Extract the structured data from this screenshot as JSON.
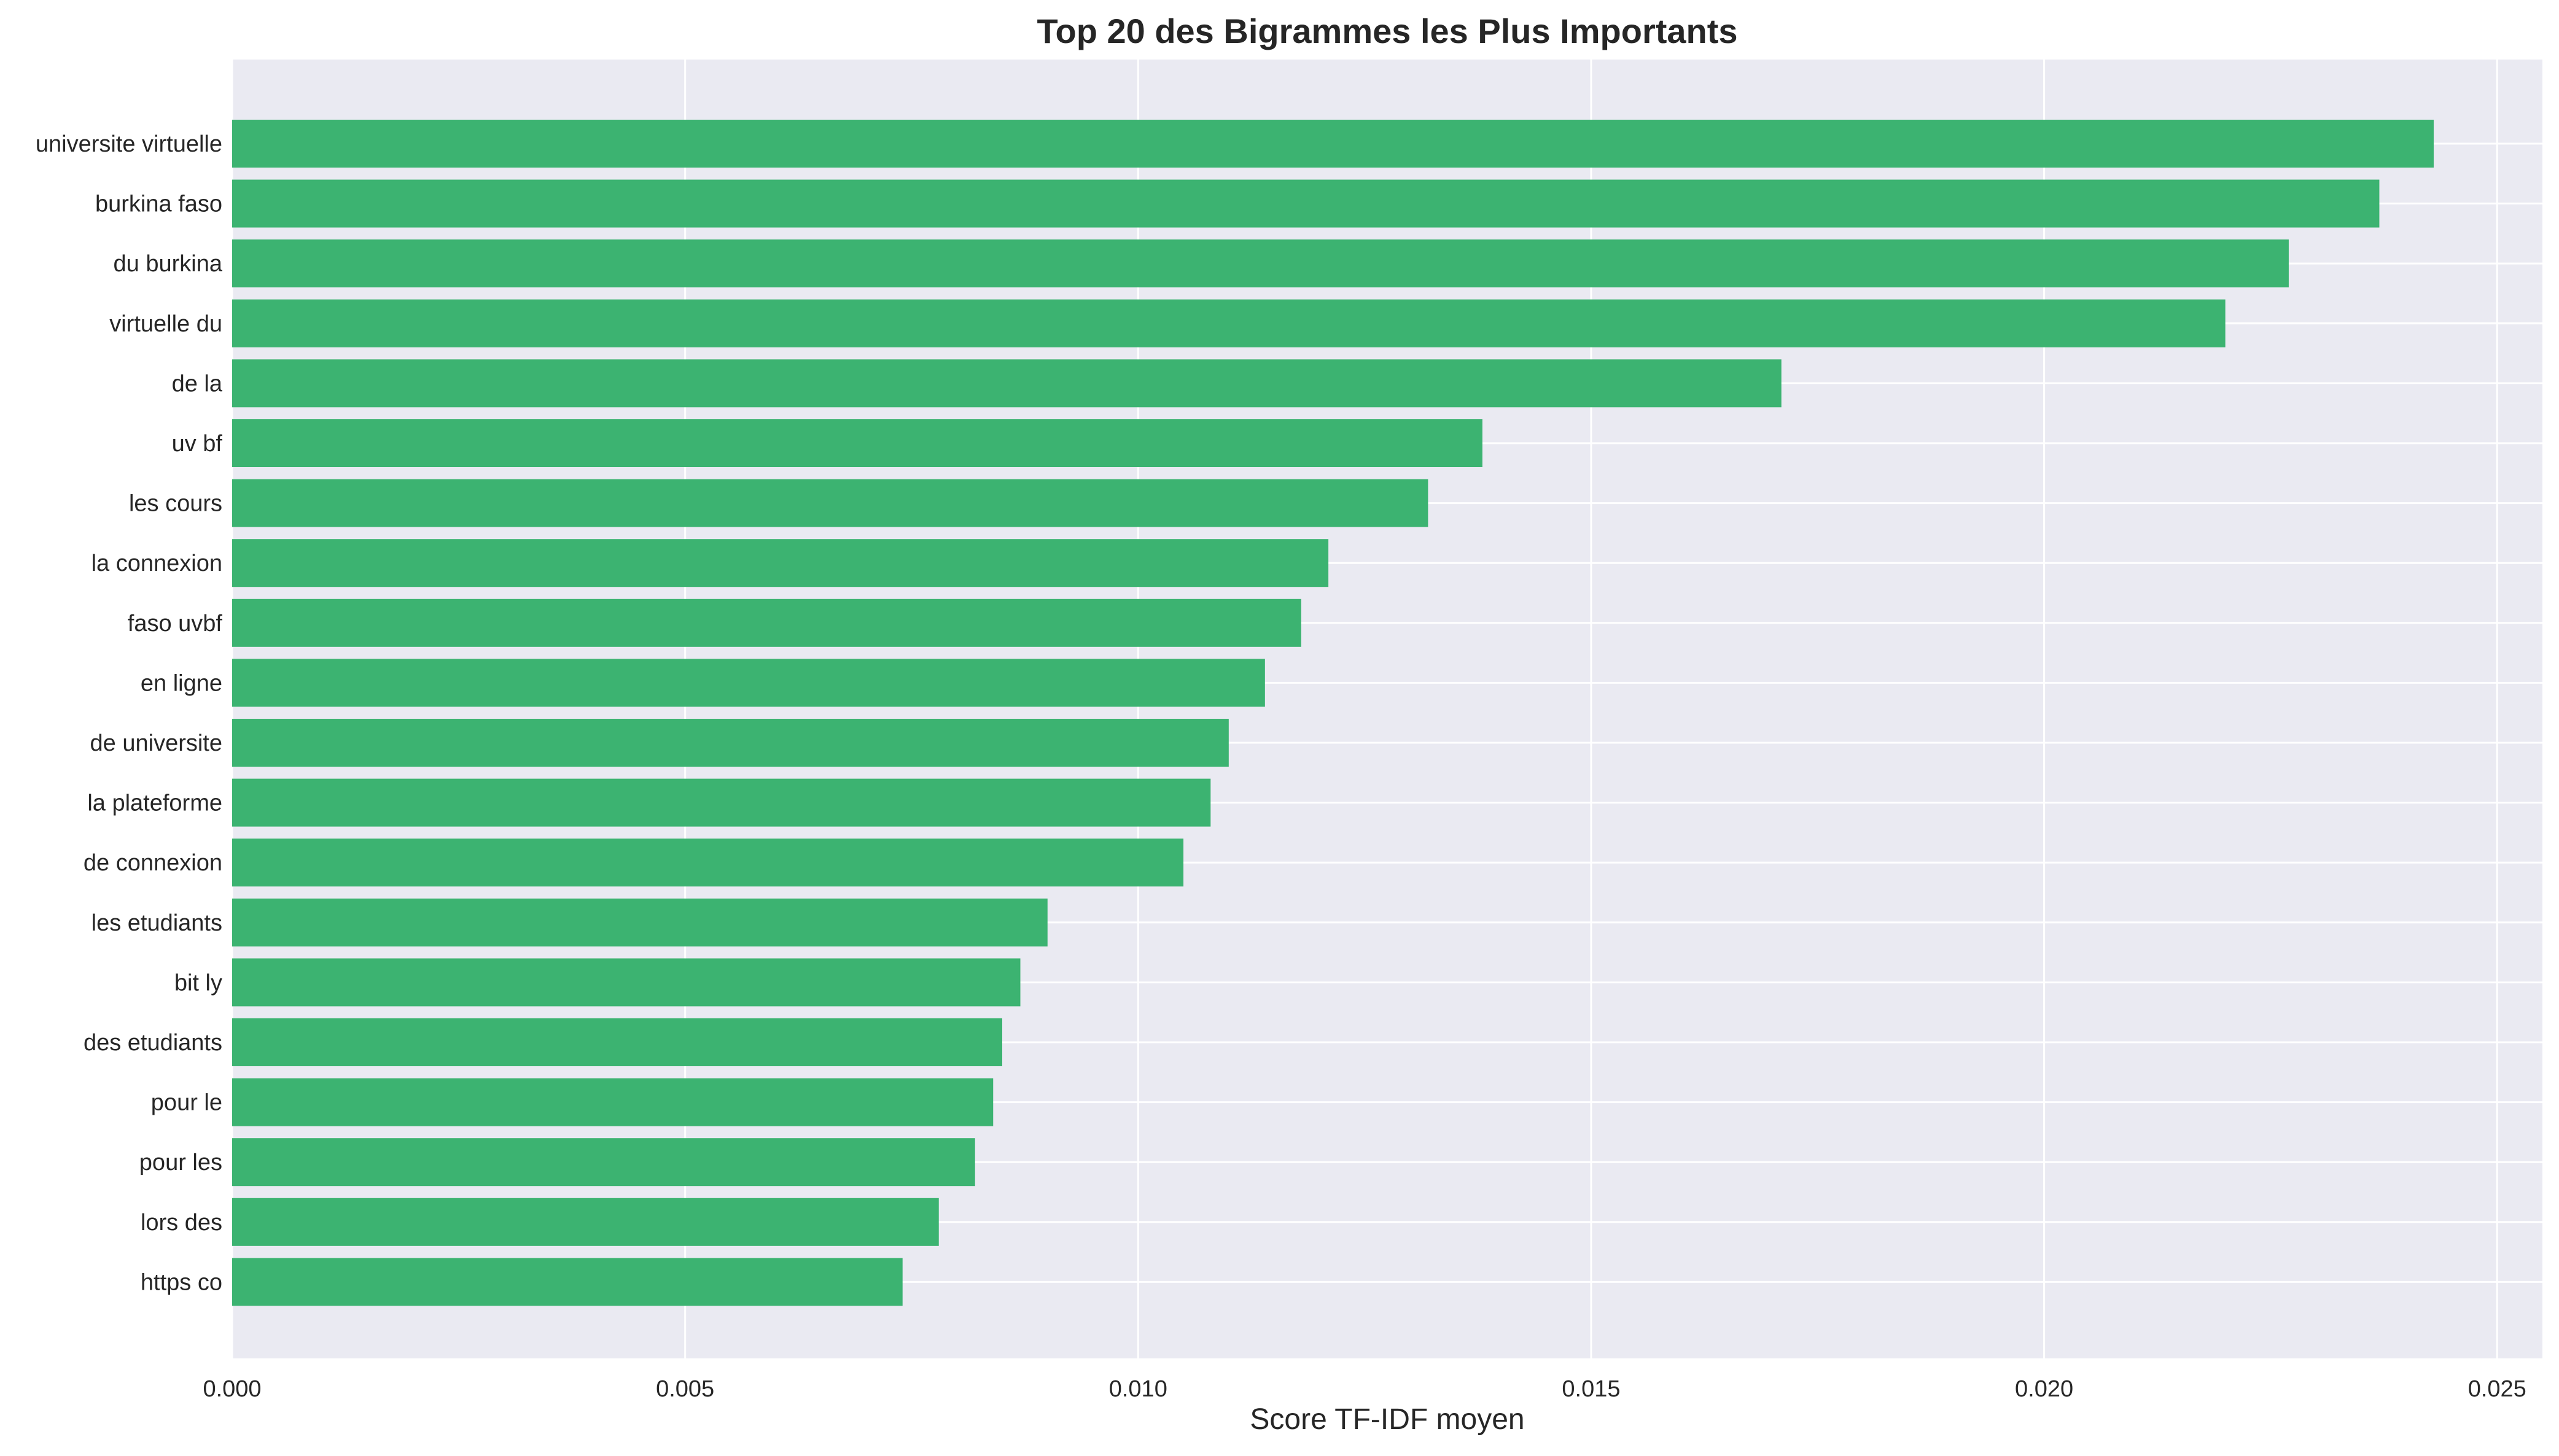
{
  "chart_data": {
    "type": "bar",
    "orientation": "horizontal",
    "title": "Top 20 des Bigrammes les Plus Importants",
    "xlabel": "Score TF-IDF moyen",
    "ylabel": "",
    "xlim": [
      0,
      0.0255
    ],
    "xticks": [
      "0.000",
      "0.005",
      "0.010",
      "0.015",
      "0.020",
      "0.025"
    ],
    "xtick_values": [
      0,
      0.005,
      0.01,
      0.015,
      0.02,
      0.025
    ],
    "grid": true,
    "colors": {
      "bar": "#3cb371",
      "plot_background": "#eaeaf2",
      "grid": "#ffffff"
    },
    "categories": [
      "universite virtuelle",
      "burkina faso",
      "du burkina",
      "virtuelle du",
      "de la",
      "uv bf",
      "les cours",
      "la connexion",
      "faso uvbf",
      "en ligne",
      "de universite",
      "la plateforme",
      "de connexion",
      "les etudiants",
      "bit ly",
      "des etudiants",
      "pour le",
      "pour les",
      "lors des",
      "https co"
    ],
    "values": [
      0.0243,
      0.0237,
      0.0227,
      0.022,
      0.0171,
      0.0138,
      0.0132,
      0.0121,
      0.0118,
      0.0114,
      0.011,
      0.0108,
      0.0105,
      0.009,
      0.0087,
      0.0085,
      0.0084,
      0.0082,
      0.0078,
      0.0074
    ]
  }
}
